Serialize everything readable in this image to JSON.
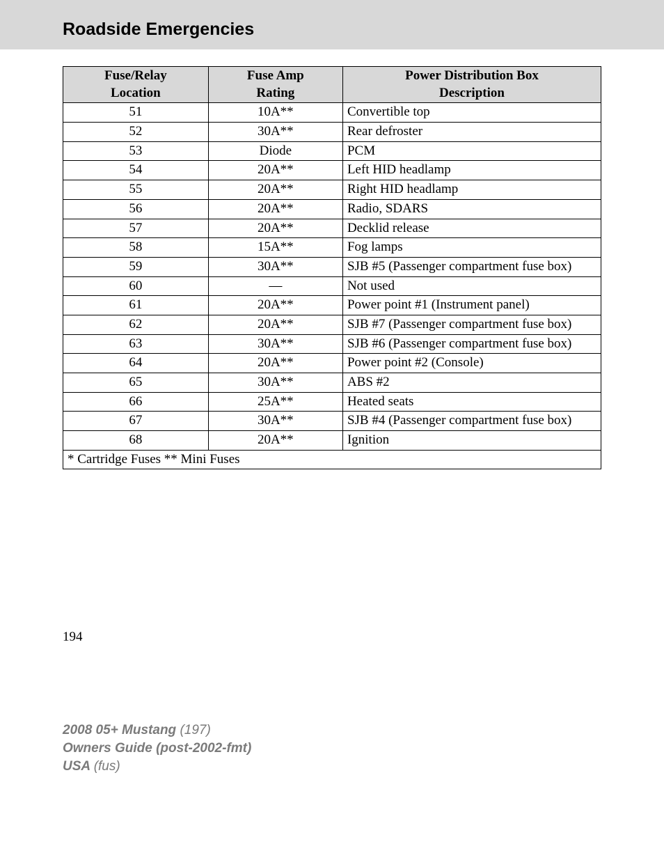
{
  "header": {
    "title": "Roadside Emergencies"
  },
  "table": {
    "columns": {
      "loc": {
        "line1": "Fuse/Relay",
        "line2": "Location"
      },
      "amp": {
        "line1": "Fuse Amp",
        "line2": "Rating"
      },
      "desc": {
        "line1": "Power Distribution Box",
        "line2": "Description"
      }
    },
    "rows": [
      {
        "loc": "51",
        "amp": "10A**",
        "desc": "Convertible top"
      },
      {
        "loc": "52",
        "amp": "30A**",
        "desc": "Rear defroster"
      },
      {
        "loc": "53",
        "amp": "Diode",
        "desc": "PCM"
      },
      {
        "loc": "54",
        "amp": "20A**",
        "desc": "Left HID headlamp"
      },
      {
        "loc": "55",
        "amp": "20A**",
        "desc": "Right HID headlamp"
      },
      {
        "loc": "56",
        "amp": "20A**",
        "desc": "Radio, SDARS"
      },
      {
        "loc": "57",
        "amp": "20A**",
        "desc": "Decklid release"
      },
      {
        "loc": "58",
        "amp": "15A**",
        "desc": "Fog lamps"
      },
      {
        "loc": "59",
        "amp": "30A**",
        "desc": "SJB #5 (Passenger compartment fuse box)"
      },
      {
        "loc": "60",
        "amp": "—",
        "desc": "Not used"
      },
      {
        "loc": "61",
        "amp": "20A**",
        "desc": "Power point #1 (Instrument panel)"
      },
      {
        "loc": "62",
        "amp": "20A**",
        "desc": "SJB #7 (Passenger compartment fuse box)"
      },
      {
        "loc": "63",
        "amp": "30A**",
        "desc": "SJB #6 (Passenger compartment fuse box)"
      },
      {
        "loc": "64",
        "amp": "20A**",
        "desc": "Power point #2 (Console)"
      },
      {
        "loc": "65",
        "amp": "30A**",
        "desc": "ABS #2"
      },
      {
        "loc": "66",
        "amp": "25A**",
        "desc": "Heated seats"
      },
      {
        "loc": "67",
        "amp": "30A**",
        "desc": "SJB #4 (Passenger compartment fuse box)"
      },
      {
        "loc": "68",
        "amp": "20A**",
        "desc": "Ignition"
      }
    ],
    "footnote": "* Cartridge Fuses ** Mini Fuses",
    "style": {
      "header_bg": "#d8d8d8",
      "border_color": "#000000",
      "font_size_pt": 14
    }
  },
  "page_number": "194",
  "footer": {
    "line1_bold": "2008 05+ Mustang ",
    "line1_ital": "(197)",
    "line2": "Owners Guide (post-2002-fmt)",
    "line3_bold": "USA ",
    "line3_ital": "(fus)"
  }
}
